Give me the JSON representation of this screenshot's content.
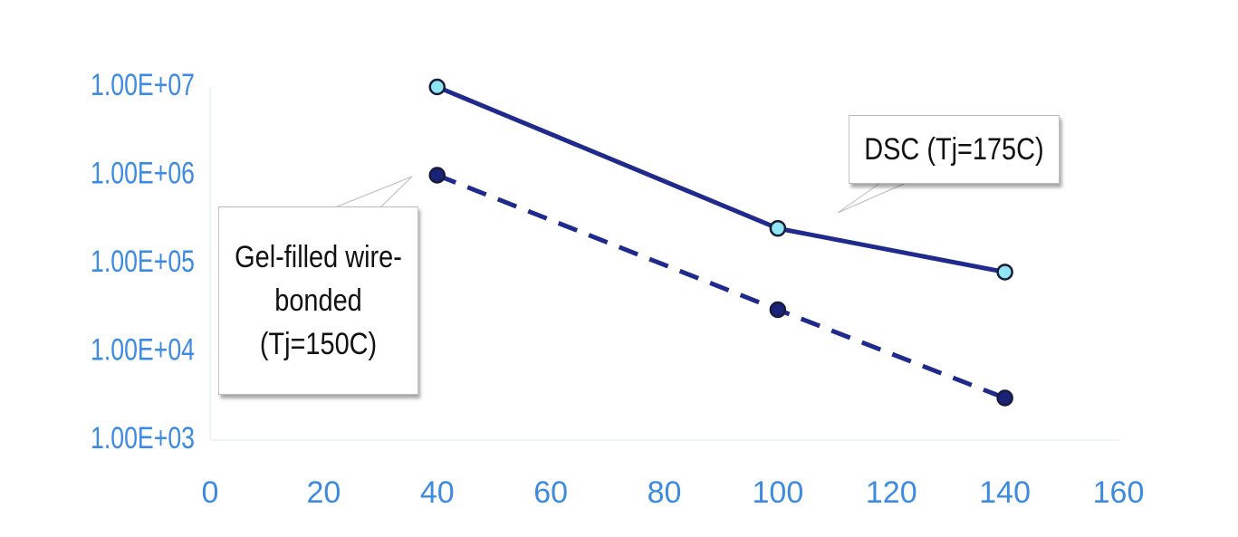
{
  "chart_data": {
    "type": "line",
    "x": [
      40,
      100,
      140
    ],
    "series": [
      {
        "name": "DSC (Tj=175C)",
        "color": "#1f2a8c",
        "marker_fill": "#8fe6f2",
        "dashed": false,
        "values": [
          10000000,
          250000,
          80000
        ]
      },
      {
        "name": "Gel-filled wire-bonded (Tj=150C)",
        "color": "#1f2a8c",
        "marker_fill": "#1a237a",
        "dashed": true,
        "values": [
          1000000,
          30000,
          3000
        ]
      }
    ],
    "xlim": [
      0,
      160
    ],
    "xticks": [
      0,
      20,
      40,
      60,
      80,
      100,
      120,
      140,
      160
    ],
    "ylim": [
      1000,
      10000000
    ],
    "log_y": true,
    "yticks": [
      {
        "value": 1000,
        "label": "1.00E+03"
      },
      {
        "value": 10000,
        "label": "1.00E+04"
      },
      {
        "value": 100000,
        "label": "1.00E+05"
      },
      {
        "value": 1000000,
        "label": "1.00E+06"
      },
      {
        "value": 10000000,
        "label": "1.00E+07"
      }
    ],
    "grid": false
  }
}
